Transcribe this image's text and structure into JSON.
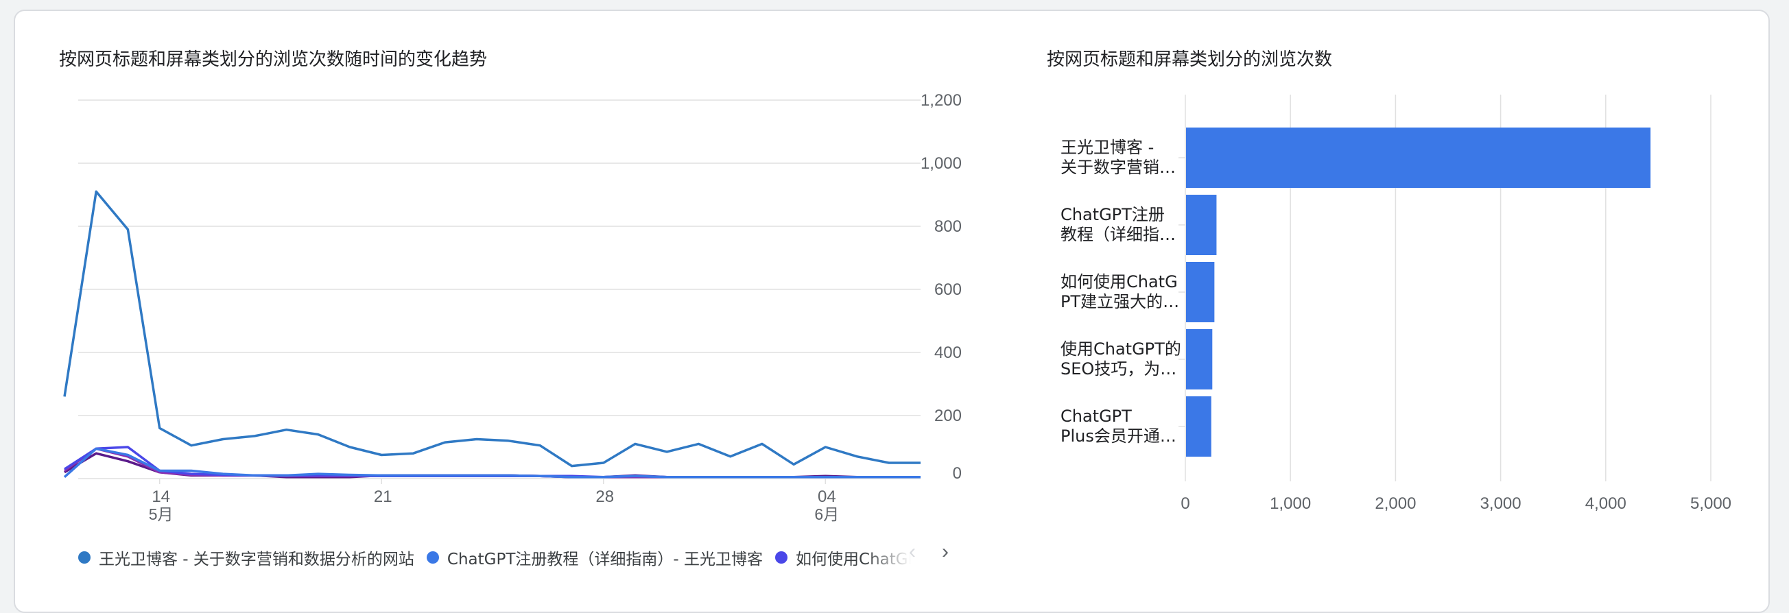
{
  "line_card": {
    "title": "按网页标题和屏幕类划分的浏览次数随时间的变化趋势"
  },
  "bar_card": {
    "title": "按网页标题和屏幕类划分的浏览次数"
  },
  "legend": {
    "prev_icon": "‹",
    "next_icon": "›"
  },
  "colors": {
    "series1": "#2f79c4",
    "series2": "#3a78e6",
    "series3": "#4a47e8",
    "series4": "#8b2fb0",
    "series5": "#5a1a8a",
    "bar": "#3b78e7",
    "grid": "#e0e0e0",
    "axis_text": "#5f6368"
  },
  "chart_data": [
    {
      "type": "line",
      "title": "按网页标题和屏幕类划分的浏览次数随时间的变化趋势",
      "y_axis_position": "right",
      "ylim": [
        0,
        1200
      ],
      "yticks": [
        0,
        200,
        400,
        600,
        800,
        1000,
        1200
      ],
      "x_tick_labels": [
        {
          "index": 3,
          "day": "14",
          "month": "5月"
        },
        {
          "index": 10,
          "day": "21",
          "month": ""
        },
        {
          "index": 17,
          "day": "28",
          "month": ""
        },
        {
          "index": 24,
          "day": "04",
          "month": "6月"
        }
      ],
      "grid": true,
      "legend_position": "bottom",
      "series": [
        {
          "name": "王光卫博客 - 关于数字营销和数据分析的网站",
          "values": [
            260,
            910,
            790,
            160,
            105,
            125,
            135,
            155,
            140,
            100,
            75,
            80,
            115,
            125,
            120,
            105,
            40,
            50,
            110,
            85,
            110,
            70,
            110,
            45,
            100,
            70,
            50,
            50
          ]
        },
        {
          "name": "ChatGPT注册教程（详细指南）- 王光卫博客",
          "values": [
            5,
            95,
            75,
            25,
            25,
            15,
            10,
            10,
            15,
            12,
            10,
            10,
            10,
            10,
            10,
            8,
            5,
            5,
            8,
            5,
            5,
            5,
            5,
            5,
            5,
            5,
            5,
            5
          ]
        },
        {
          "name": "如何使用ChatGPT建立强大的…",
          "values": [
            30,
            95,
            100,
            25,
            15,
            12,
            10,
            10,
            10,
            10,
            8,
            8,
            8,
            8,
            8,
            8,
            8,
            5,
            8,
            5,
            5,
            5,
            5,
            5,
            5,
            5,
            5,
            5
          ]
        },
        {
          "name": "",
          "values": [
            25,
            95,
            70,
            20,
            12,
            10,
            10,
            8,
            8,
            8,
            8,
            10,
            10,
            10,
            10,
            8,
            5,
            5,
            5,
            5,
            5,
            5,
            5,
            5,
            5,
            5,
            5,
            5
          ]
        },
        {
          "name": "",
          "values": [
            20,
            80,
            55,
            20,
            10,
            10,
            10,
            5,
            5,
            5,
            10,
            10,
            10,
            10,
            10,
            8,
            5,
            5,
            10,
            5,
            5,
            5,
            5,
            5,
            8,
            5,
            5,
            5
          ]
        }
      ]
    },
    {
      "type": "bar",
      "orientation": "horizontal",
      "title": "按网页标题和屏幕类划分的浏览次数",
      "categories": [
        "王光卫博客 -\n关于数字营销…",
        "ChatGPT注册\n教程（详细指…",
        "如何使用ChatG\nPT建立强大的…",
        "使用ChatGPT的\nSEO技巧，为…",
        "ChatGPT\nPlus会员开通…"
      ],
      "values": [
        4420,
        290,
        270,
        250,
        240
      ],
      "xlim": [
        0,
        5000
      ],
      "xticks": [
        0,
        1000,
        2000,
        3000,
        4000,
        5000
      ],
      "x_tick_labels": [
        "0",
        "1,000",
        "2,000",
        "3,000",
        "4,000",
        "5,000"
      ],
      "grid": true
    }
  ]
}
